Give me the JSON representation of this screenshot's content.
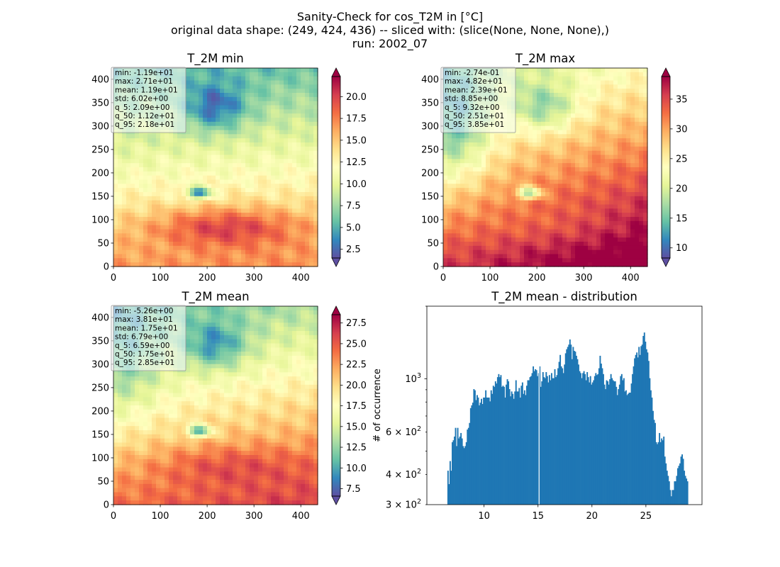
{
  "figure": {
    "title_lines": [
      "Sanity-Check for cos_T2M in [°C]",
      "original data shape: (249, 424, 436) -- sliced with: (slice(None, None, None),)",
      "run: 2002_07"
    ]
  },
  "colormap": {
    "name": "Spectral_r",
    "stops": [
      "#5e4fa2",
      "#3288bd",
      "#66c2a5",
      "#abdda4",
      "#e6f598",
      "#ffffbf",
      "#fee08b",
      "#fdae61",
      "#f46d43",
      "#d53e4f",
      "#9e0142"
    ]
  },
  "chart_data": [
    {
      "type": "heatmap",
      "title": "T_2M min",
      "x_ticks": [
        "0",
        "100",
        "200",
        "300",
        "400"
      ],
      "y_ticks": [
        "0",
        "50",
        "100",
        "150",
        "200",
        "250",
        "300",
        "350",
        "400"
      ],
      "xlim": [
        0,
        436
      ],
      "ylim": [
        0,
        424
      ],
      "colorbar": {
        "range": [
          1.5,
          22.3
        ],
        "ticks": [
          "2.5",
          "5.0",
          "7.5",
          "10.0",
          "12.5",
          "15.0",
          "17.5",
          "20.0"
        ]
      },
      "stats": [
        "min: -1.19e+01",
        "max: 2.71e+01",
        "mean: 1.19e+01",
        "std: 6.02e+00",
        "q_5: 2.09e+00",
        "q_50: 1.12e+01",
        "q_95: 2.18e+01"
      ]
    },
    {
      "type": "heatmap",
      "title": "T_2M max",
      "x_ticks": [
        "0",
        "100",
        "200",
        "300",
        "400"
      ],
      "y_ticks": [
        "0",
        "50",
        "100",
        "150",
        "200",
        "250",
        "300",
        "350",
        "400"
      ],
      "xlim": [
        0,
        436
      ],
      "ylim": [
        0,
        424
      ],
      "colorbar": {
        "range": [
          8.3,
          38.8
        ],
        "ticks": [
          "10",
          "15",
          "20",
          "25",
          "30",
          "35"
        ]
      },
      "stats": [
        "min: -2.74e-01",
        "max: 4.82e+01",
        "mean: 2.39e+01",
        "std: 8.85e+00",
        "q_5: 9.32e+00",
        "q_50: 2.51e+01",
        "q_95: 3.85e+01"
      ]
    },
    {
      "type": "heatmap",
      "title": "T_2M mean",
      "x_ticks": [
        "0",
        "100",
        "200",
        "300",
        "400"
      ],
      "y_ticks": [
        "0",
        "50",
        "100",
        "150",
        "200",
        "250",
        "300",
        "350",
        "400"
      ],
      "xlim": [
        0,
        436
      ],
      "ylim": [
        0,
        424
      ],
      "colorbar": {
        "range": [
          6.6,
          28.5
        ],
        "ticks": [
          "7.5",
          "10.0",
          "12.5",
          "15.0",
          "17.5",
          "20.0",
          "22.5",
          "25.0",
          "27.5"
        ]
      },
      "stats": [
        "min: -5.26e+00",
        "max: 3.81e+01",
        "mean: 1.75e+01",
        "std: 6.79e+00",
        "q_5: 6.59e+00",
        "q_50: 1.75e+01",
        "q_95: 2.85e+01"
      ]
    },
    {
      "type": "bar",
      "title": "T_2M mean - distribution",
      "ylabel": "# of occurrence",
      "y_scale": "log",
      "xlim": [
        4.7,
        30.2
      ],
      "ylim": [
        300,
        2000
      ],
      "x_ticks": [
        "10",
        "15",
        "20",
        "25"
      ],
      "y_tick_labels": [
        {
          "value": 1000,
          "base": "10",
          "exp": "3"
        },
        {
          "value": 600,
          "base": "6 × 10",
          "exp": "2"
        },
        {
          "value": 400,
          "base": "4 × 10",
          "exp": "2"
        },
        {
          "value": 300,
          "base": "3 × 10",
          "exp": "2"
        }
      ],
      "bar_color": "#1f77b4",
      "x_start": 6.6,
      "bin_width": 0.1,
      "values": [
        415,
        365,
        455,
        415,
        545,
        555,
        575,
        625,
        525,
        625,
        565,
        575,
        595,
        565,
        525,
        515,
        525,
        545,
        615,
        625,
        655,
        755,
        775,
        795,
        905,
        895,
        815,
        855,
        835,
        775,
        795,
        825,
        785,
        835,
        835,
        895,
        835,
        835,
        835,
        805,
        895,
        865,
        935,
        925,
        975,
        955,
        1015,
        1045,
        1015,
        1035,
        925,
        935,
        925,
        835,
        945,
        995,
        975,
        905,
        845,
        885,
        865,
        825,
        885,
        985,
        885,
        885,
        915,
        835,
        935,
        965,
        865,
        895,
        855,
        935,
        985,
        985,
        1015,
        1025,
        1055,
        1125,
        1075,
        1095,
        1085,
        1025,
        1055,
        1125,
        925,
        975,
        1065,
        1015,
        1005,
        1065,
        1025,
        965,
        1035,
        985,
        1055,
        1005,
        1005,
        1095,
        1015,
        1035,
        1105,
        1175,
        1255,
        1125,
        1105,
        1055,
        1145,
        1275,
        1325,
        1355,
        1385,
        1455,
        1385,
        1205,
        1355,
        1305,
        1295,
        1245,
        1205,
        1145,
        1075,
        1055,
        1005,
        1055,
        1075,
        1045,
        985,
        1065,
        1015,
        965,
        1025,
        945,
        965,
        985,
        1025,
        1055,
        1035,
        1045,
        1105,
        1245,
        1155,
        1105,
        1045,
        945,
        905,
        985,
        975,
        945,
        995,
        1045,
        1005,
        985,
        975,
        975,
        925,
        855,
        905,
        945,
        1025,
        1045,
        985,
        1005,
        885,
        895,
        855,
        865,
        875,
        875,
        955,
        1045,
        1125,
        1215,
        1255,
        1285,
        1225,
        1355,
        1255,
        1365,
        1385,
        1505,
        1555,
        1425,
        1325,
        1285,
        1185,
        1005,
        895,
        835,
        735,
        675,
        655,
        545,
        535,
        545,
        595,
        545,
        565,
        555,
        575,
        475,
        445,
        415,
        395,
        375,
        345,
        325,
        345,
        345,
        375,
        375,
        395,
        425,
        435,
        445,
        475,
        485,
        465,
        415,
        395,
        385,
        375
      ],
      "gaps_at_x": [
        15.1
      ]
    }
  ]
}
